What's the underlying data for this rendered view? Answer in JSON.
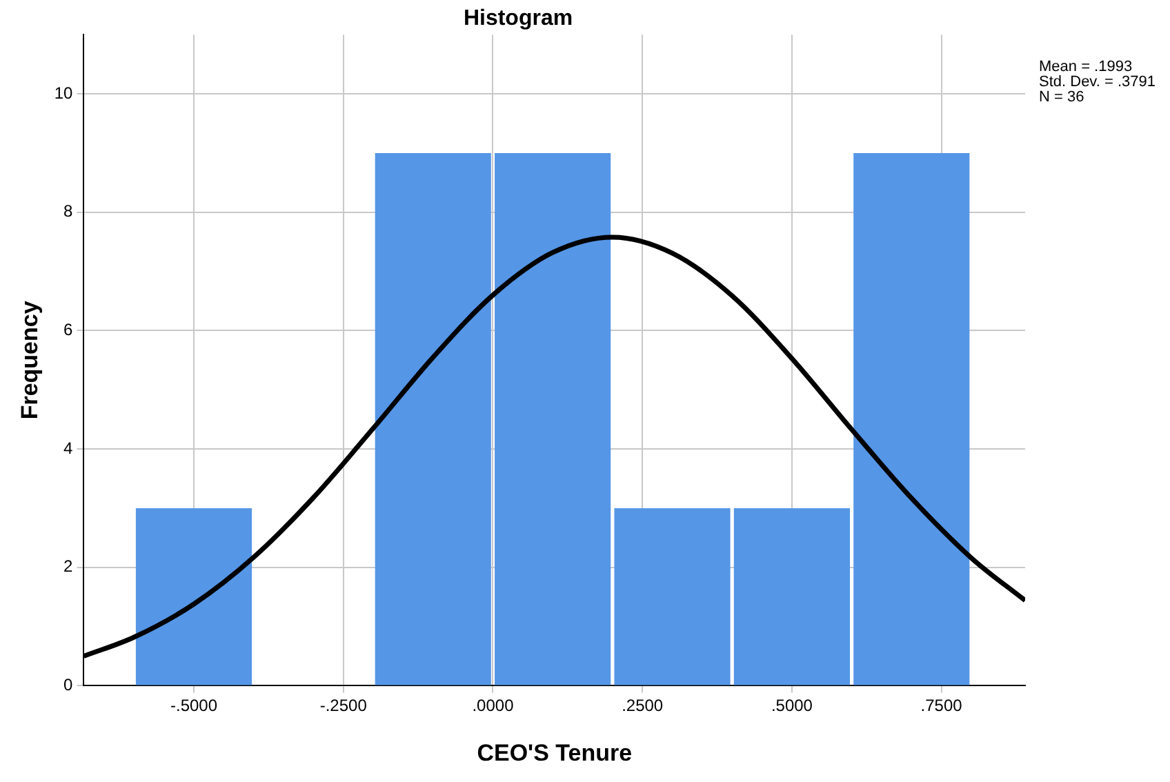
{
  "chart_data": {
    "type": "histogram",
    "title": "Histogram",
    "xlabel": "CEO'S Tenure",
    "ylabel": "Frequency",
    "bins": [
      -0.6,
      -0.4,
      -0.2,
      0,
      0.2,
      0.4,
      0.6,
      0.8
    ],
    "values": [
      3,
      0,
      9,
      9,
      3,
      3,
      9
    ],
    "color": "#5596e6",
    "series": [
      {
        "type": "line",
        "color": "#000000",
        "x": [
          -0.684,
          -0.6,
          -0.5,
          -0.4,
          -0.3,
          -0.2,
          -0.1,
          0,
          0.1,
          0.2,
          0.3,
          0.4,
          0.5,
          0.6,
          0.7,
          0.8,
          0.89
        ],
        "values": [
          0.5,
          0.82,
          1.38,
          2.17,
          3.18,
          4.35,
          5.55,
          6.6,
          7.32,
          7.58,
          7.31,
          6.59,
          5.53,
          4.33,
          3.17,
          2.16,
          1.44
        ]
      }
    ],
    "xlim": [
      -0.684,
      0.89
    ],
    "xticks": [
      {
        "value": -0.5,
        "label": "-.5000"
      },
      {
        "value": -0.25,
        "label": "-.2500"
      },
      {
        "value": 0,
        "label": ".0000"
      },
      {
        "value": 0.25,
        "label": ".2500"
      },
      {
        "value": 0.5,
        "label": ".5000"
      },
      {
        "value": 0.75,
        "label": ".7500"
      }
    ],
    "ylim": [
      0,
      11
    ],
    "yticks": [
      0,
      2,
      4,
      6,
      8,
      10
    ],
    "grid": true,
    "legend": false,
    "marker": "none",
    "line_style": "solid",
    "annotations": [
      "Mean = .1993",
      "Std. Dev. = .3791",
      "N = 36"
    ]
  }
}
